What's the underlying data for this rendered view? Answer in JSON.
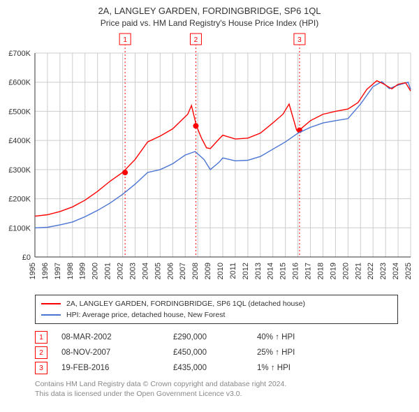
{
  "title": "2A, LANGLEY GARDEN, FORDINGBRIDGE, SP6 1QL",
  "subtitle": "Price paid vs. HM Land Registry's House Price Index (HPI)",
  "chart": {
    "type": "line",
    "background_color": "#ffffff",
    "grid_color": "#cccccc",
    "line_colors": {
      "property": "#ff0000",
      "hpi": "#4a74d4"
    },
    "line_width": 1.4,
    "x_years": [
      1995,
      1996,
      1997,
      1998,
      1999,
      2000,
      2001,
      2002,
      2003,
      2004,
      2005,
      2006,
      2007,
      2008,
      2009,
      2010,
      2011,
      2012,
      2013,
      2014,
      2015,
      2016,
      2017,
      2018,
      2019,
      2020,
      2021,
      2022,
      2023,
      2024,
      2025
    ],
    "ylim": [
      0,
      700000
    ],
    "ytick_step": 100000,
    "ytick_labels": [
      "£0",
      "£100K",
      "£200K",
      "£300K",
      "£400K",
      "£500K",
      "£600K",
      "£700K"
    ],
    "series_property": [
      [
        1995,
        140
      ],
      [
        1996,
        145
      ],
      [
        1997,
        156
      ],
      [
        1998,
        172
      ],
      [
        1999,
        195
      ],
      [
        2000,
        225
      ],
      [
        2001,
        260
      ],
      [
        2002,
        290
      ],
      [
        2003,
        335
      ],
      [
        2004,
        395
      ],
      [
        2005,
        415
      ],
      [
        2006,
        440
      ],
      [
        2007.2,
        490
      ],
      [
        2007.5,
        520
      ],
      [
        2007.9,
        450
      ],
      [
        2008.3,
        408
      ],
      [
        2008.7,
        375
      ],
      [
        2009,
        372
      ],
      [
        2009.6,
        400
      ],
      [
        2010,
        418
      ],
      [
        2011,
        405
      ],
      [
        2012,
        408
      ],
      [
        2013,
        425
      ],
      [
        2014,
        460
      ],
      [
        2014.8,
        490
      ],
      [
        2015.3,
        525
      ],
      [
        2015.9,
        435
      ],
      [
        2016.1,
        435
      ],
      [
        2017,
        468
      ],
      [
        2018,
        490
      ],
      [
        2019,
        500
      ],
      [
        2020,
        508
      ],
      [
        2020.8,
        530
      ],
      [
        2021.5,
        575
      ],
      [
        2022.3,
        605
      ],
      [
        2022.8,
        595
      ],
      [
        2023.5,
        577
      ],
      [
        2024,
        593
      ],
      [
        2024.6,
        598
      ],
      [
        2025,
        570
      ]
    ],
    "series_hpi": [
      [
        1995,
        100
      ],
      [
        1996,
        102
      ],
      [
        1997,
        110
      ],
      [
        1998,
        120
      ],
      [
        1999,
        138
      ],
      [
        2000,
        160
      ],
      [
        2001,
        185
      ],
      [
        2002,
        215
      ],
      [
        2003,
        250
      ],
      [
        2004,
        290
      ],
      [
        2005,
        300
      ],
      [
        2006,
        320
      ],
      [
        2007,
        350
      ],
      [
        2007.8,
        362
      ],
      [
        2008.5,
        335
      ],
      [
        2009,
        300
      ],
      [
        2009.7,
        325
      ],
      [
        2010,
        340
      ],
      [
        2011,
        330
      ],
      [
        2012,
        332
      ],
      [
        2013,
        345
      ],
      [
        2014,
        370
      ],
      [
        2015,
        395
      ],
      [
        2016,
        425
      ],
      [
        2017,
        445
      ],
      [
        2018,
        460
      ],
      [
        2019,
        468
      ],
      [
        2020,
        475
      ],
      [
        2021,
        525
      ],
      [
        2022,
        585
      ],
      [
        2022.7,
        602
      ],
      [
        2023.3,
        578
      ],
      [
        2024,
        590
      ],
      [
        2024.8,
        600
      ],
      [
        2025,
        575
      ]
    ],
    "tx_markers": [
      {
        "num": "1",
        "year": 2002.2,
        "price": 290
      },
      {
        "num": "2",
        "year": 2007.85,
        "price": 450
      },
      {
        "num": "3",
        "year": 2016.13,
        "price": 435
      }
    ],
    "tx_marker_line_color": "#ff0000",
    "tx_marker_line_dash": "2,3"
  },
  "legend": {
    "items": [
      {
        "color": "#ff0000",
        "label": "2A, LANGLEY GARDEN, FORDINGBRIDGE, SP6 1QL (detached house)"
      },
      {
        "color": "#4a74d4",
        "label": "HPI: Average price, detached house, New Forest"
      }
    ]
  },
  "transactions": [
    {
      "num": "1",
      "date": "08-MAR-2002",
      "price": "£290,000",
      "delta": "40% ↑ HPI"
    },
    {
      "num": "2",
      "date": "08-NOV-2007",
      "price": "£450,000",
      "delta": "25% ↑ HPI"
    },
    {
      "num": "3",
      "date": "19-FEB-2016",
      "price": "£435,000",
      "delta": "1% ↑ HPI"
    }
  ],
  "footnote_l1": "Contains HM Land Registry data © Crown copyright and database right 2024.",
  "footnote_l2": "This data is licensed under the Open Government Licence v3.0."
}
